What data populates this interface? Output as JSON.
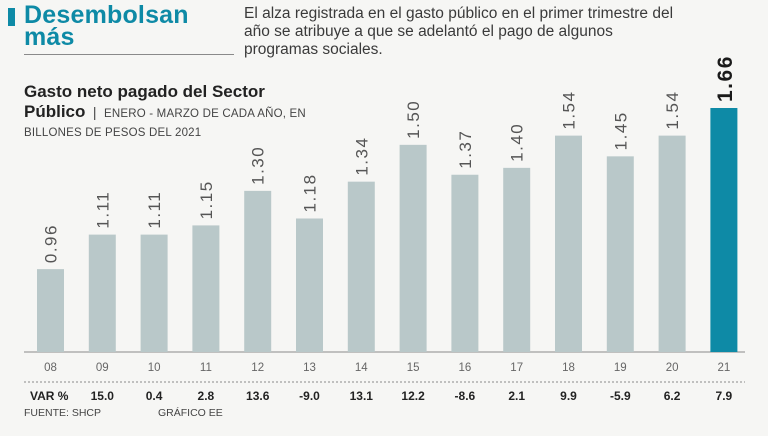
{
  "header": {
    "headline": "Desembolsan más",
    "deck": "El alza registrada en el gasto público en el primer trimestre del año se atribuye a que se adelantó el pago de algunos programas sociales."
  },
  "subtitle": {
    "main": "Gasto neto pagado del Sector Público",
    "separator": "|",
    "note": "ENERO - MARZO DE CADA AÑO, EN BILLONES DE PESOS DEL 2021"
  },
  "colors": {
    "bar": "#b9c8c9",
    "highlight": "#0e8aa6",
    "accent": "#0e8aa6"
  },
  "chart_data": {
    "type": "bar",
    "title": "Gasto neto pagado del Sector Público",
    "categories": [
      "08",
      "09",
      "10",
      "11",
      "12",
      "13",
      "14",
      "15",
      "16",
      "17",
      "18",
      "19",
      "20",
      "21"
    ],
    "values": [
      0.96,
      1.11,
      1.11,
      1.15,
      1.3,
      1.18,
      1.34,
      1.5,
      1.37,
      1.4,
      1.54,
      1.45,
      1.54,
      1.66
    ],
    "value_labels": [
      "0.96",
      "1.11",
      "1.11",
      "1.15",
      "1.30",
      "1.18",
      "1.34",
      "1.50",
      "1.37",
      "1.40",
      "1.54",
      "1.45",
      "1.54",
      "1.66"
    ],
    "highlight_index": 13,
    "ylim": [
      0.6,
      1.7
    ],
    "xlabel": "",
    "ylabel": "Billones de pesos del 2021",
    "var_label": "VAR %",
    "var_values": [
      "15.0",
      "0.4",
      "2.8",
      "13.6",
      "-9.0",
      "13.1",
      "12.2",
      "-8.6",
      "2.1",
      "9.9",
      "-5.9",
      "6.2",
      "7.9"
    ]
  },
  "footer": {
    "source": "FUENTE: SHCP",
    "credit": "GRÁFICO EE"
  }
}
